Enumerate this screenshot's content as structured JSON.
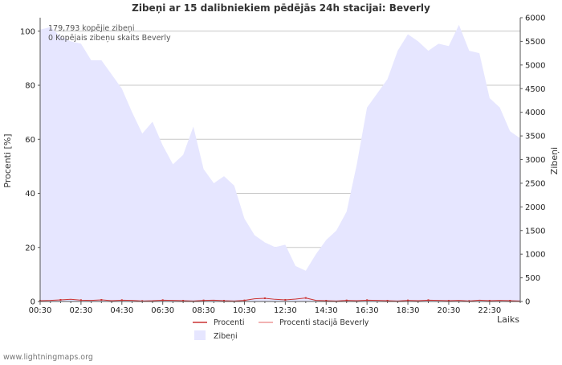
{
  "chart_data": {
    "type": "area",
    "title": "Zibeņi ar 15 dalibniekiem pēdējās 24h stacijai: Beverly",
    "ylabel_left": "Procenti   [%]",
    "ylabel_right": "Zibeņi",
    "xlabel": "Laiks",
    "ylim_left": [
      0,
      105
    ],
    "ylim_right": [
      0,
      6000
    ],
    "left_ticks": [
      "0",
      "20",
      "40",
      "60",
      "80",
      "100"
    ],
    "right_ticks": [
      "0",
      "500",
      "1000",
      "1500",
      "2000",
      "2500",
      "3000",
      "3500",
      "4000",
      "4500",
      "5000",
      "5500",
      "6000"
    ],
    "x_tick_labels": [
      "00:30",
      "02:30",
      "04:30",
      "06:30",
      "08:30",
      "10:30",
      "12:30",
      "14:30",
      "16:30",
      "18:30",
      "20:30",
      "22:30"
    ],
    "x_hours": [
      0.5,
      1.0,
      1.5,
      2.0,
      2.5,
      3.0,
      3.5,
      4.0,
      4.5,
      5.0,
      5.5,
      6.0,
      6.5,
      7.0,
      7.5,
      8.0,
      8.5,
      9.0,
      9.5,
      10.0,
      10.5,
      11.0,
      11.5,
      12.0,
      12.5,
      13.0,
      13.5,
      14.0,
      14.5,
      15.0,
      15.5,
      16.0,
      16.5,
      17.0,
      17.5,
      18.0,
      18.5,
      19.0,
      19.5,
      20.0,
      20.5,
      21.0,
      21.5,
      22.0,
      22.5,
      23.0,
      23.5,
      24.0
    ],
    "series": [
      {
        "name": "Zibeņi",
        "color": "#e6e6ff",
        "axis": "right",
        "values": [
          5750,
          5800,
          5600,
          5500,
          5450,
          5100,
          5100,
          4800,
          4500,
          4000,
          3550,
          3800,
          3300,
          2900,
          3100,
          3700,
          2800,
          2500,
          2650,
          2450,
          1750,
          1400,
          1250,
          1150,
          1200,
          750,
          650,
          1000,
          1300,
          1500,
          1900,
          2900,
          4100,
          4400,
          4700,
          5300,
          5650,
          5500,
          5300,
          5450,
          5400,
          5850,
          5300,
          5250,
          4300,
          4100,
          3600,
          3450
        ]
      },
      {
        "name": "Procenti",
        "color": "#cc3333",
        "axis": "left",
        "values": [
          0.3,
          0.4,
          0.6,
          0.8,
          0.5,
          0.4,
          0.6,
          0.3,
          0.5,
          0.4,
          0.2,
          0.3,
          0.5,
          0.4,
          0.3,
          0.2,
          0.4,
          0.5,
          0.3,
          0.2,
          0.4,
          1.0,
          1.2,
          0.8,
          0.6,
          0.9,
          1.3,
          0.4,
          0.3,
          0.2,
          0.4,
          0.3,
          0.5,
          0.4,
          0.3,
          0.2,
          0.4,
          0.3,
          0.5,
          0.4,
          0.3,
          0.4,
          0.2,
          0.5,
          0.3,
          0.4,
          0.3,
          0.2
        ]
      },
      {
        "name": "Procenti stacijā Beverly",
        "color": "#ee9999",
        "axis": "left",
        "values": [
          0,
          0,
          0,
          0,
          0,
          0,
          0,
          0,
          0,
          0,
          0,
          0,
          0,
          0,
          0,
          0,
          0,
          0,
          0,
          0,
          0,
          0,
          0,
          0,
          0,
          0,
          0,
          0,
          0,
          0,
          0,
          0,
          0,
          0,
          0,
          0,
          0,
          0,
          0,
          0,
          0,
          0,
          0,
          0,
          0,
          0,
          0,
          0
        ]
      }
    ],
    "info_lines": [
      "179,793 kopējie zibeņi",
      "0 Kopējais zibeņu skaits Beverly"
    ],
    "legend": [
      {
        "label": "Procenti",
        "kind": "line",
        "color": "#cc3333"
      },
      {
        "label": "Procenti stacijā Beverly",
        "kind": "line",
        "color": "#ee9999"
      },
      {
        "label": "Zibeņi",
        "kind": "area",
        "color": "#e6e6ff"
      }
    ]
  },
  "footer": "www.lightningmaps.org"
}
